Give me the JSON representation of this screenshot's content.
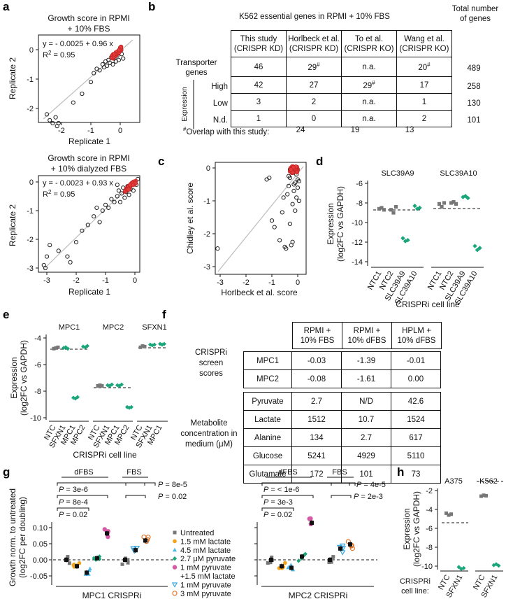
{
  "panels": [
    "a",
    "b",
    "c",
    "d",
    "e",
    "f",
    "g",
    "h"
  ],
  "a": {
    "top": {
      "title1": "Growth score in RPMI",
      "title2": "+ 10% FBS",
      "eq": "y = - 0.0025 + 0.96 x",
      "r2": "R",
      "r2sup": "2",
      "r2val": " = 0.95",
      "xlabel": "Replicate 1",
      "ylabel": "Replicate 2",
      "xticks": [
        "-2",
        "-1",
        "0"
      ],
      "yticks": [
        "0",
        "-1",
        "-2"
      ]
    },
    "bottom": {
      "title1": "Growth score in RPMI",
      "title2": "+ 10% dialyzed FBS",
      "eq": "y = - 0.0023 + 0.93 x",
      "r2": "R",
      "r2sup": "2",
      "r2val": " = 0.95",
      "xlabel": "Replicate 1",
      "ylabel": "Replicate 2",
      "xticks": [
        "-3",
        "-2",
        "-1",
        "0"
      ],
      "yticks": [
        "0",
        "-1",
        "-2",
        "-3"
      ]
    }
  },
  "b": {
    "title": "K562 essential genes in RPMI + 10% FBS",
    "total_hdr1": "Total number",
    "total_hdr2": "of genes",
    "col_hdrs": [
      [
        "This study",
        "(CRISPR KD)"
      ],
      [
        "Horlbeck et al.",
        "(CRISPR KD)"
      ],
      [
        "To et al.",
        "(CRISPR KO)"
      ],
      [
        "Wang et al.",
        "(CRISPR KO)"
      ]
    ],
    "row_transporter": [
      "Transporter",
      "genes"
    ],
    "expression_label": "Expression",
    "rows": [
      {
        "label": "",
        "cells": [
          "46",
          "29",
          "n.a.",
          "20"
        ],
        "sup": [
          "",
          "#",
          "",
          "#"
        ],
        "total": "489"
      },
      {
        "label": "High",
        "cells": [
          "42",
          "27",
          "29",
          "17"
        ],
        "sup": [
          "",
          "",
          "#",
          ""
        ],
        "total": "258"
      },
      {
        "label": "Low",
        "cells": [
          "3",
          "2",
          "n.a.",
          "1"
        ],
        "sup": [
          "",
          "",
          "",
          ""
        ],
        "total": "130"
      },
      {
        "label": "N.d.",
        "cells": [
          "1",
          "0",
          "n.a.",
          "2"
        ],
        "sup": [
          "",
          "",
          "",
          ""
        ],
        "total": "101"
      }
    ],
    "overlap_sup": "#",
    "overlap_label": "Overlap with this study:",
    "overlap": [
      "24",
      "19",
      "13"
    ]
  },
  "c": {
    "xlabel": "Horlbeck et al. score",
    "ylabel": "Chidley et al. score",
    "xticks": [
      "-3",
      "-2",
      "-1",
      "0"
    ],
    "yticks": [
      "0",
      "-1",
      "-2",
      "-3"
    ]
  },
  "d": {
    "genes": [
      "SLC39A9",
      "SLC39A10"
    ],
    "yticks": [
      "-6",
      "-8",
      "-10",
      "-12",
      "-14"
    ],
    "ylabel1": "Expression",
    "ylabel2": "(log2FC vs GAPDH)",
    "xcats": [
      "NTC1",
      "NTC2",
      "SLC39A9",
      "SLC39A10"
    ],
    "xlabel": "CRISPRi cell line",
    "chart_data": {
      "type": "scatter",
      "groups": [
        {
          "gene": "SLC39A9",
          "values": {
            "NTC1": [
              -8.6,
              -8.5,
              -8.7
            ],
            "NTC2": [
              -8.7,
              -9.0,
              -8.4
            ],
            "SLC39A9": [
              -11.6,
              -11.9,
              -11.8
            ],
            "SLC39A10": [
              -8.3,
              -8.6,
              -8.5
            ]
          }
        },
        {
          "gene": "SLC39A10",
          "values": {
            "NTC1": [
              -8.1,
              -8.4,
              -8.0
            ],
            "NTC2": [
              -8.0,
              -7.9,
              -8.1
            ],
            "SLC39A9": [
              -7.4,
              -7.3,
              -7.5
            ],
            "SLC39A10": [
              -12.4,
              -12.8,
              -12.6
            ]
          }
        }
      ]
    }
  },
  "e": {
    "genes": [
      "MPC1",
      "MPC2",
      "SFXN1"
    ],
    "yticks": [
      "-4",
      "-6",
      "-8",
      "-10"
    ],
    "ylabel1": "Expression",
    "ylabel2": "(log2FC vs GAPDH)",
    "xcats": [
      "NTC",
      "SFXN1",
      "MPC1",
      "MPC2"
    ],
    "xlabel": "CRISPRi cell line"
  },
  "f": {
    "col_hdrs": [
      [
        "RPMI +",
        "10% FBS"
      ],
      [
        "RPMI +",
        "10% dFBS"
      ],
      [
        "HPLM +",
        "10% dFBS"
      ]
    ],
    "screen_label": [
      "CRISPRi",
      "screen",
      "scores"
    ],
    "screen_rows": [
      {
        "label": "MPC1",
        "vals": [
          "-0.03",
          "-1.39",
          "-0.01"
        ]
      },
      {
        "label": "MPC2",
        "vals": [
          "-0.08",
          "-1.61",
          "0.00"
        ]
      }
    ],
    "metab_label": [
      "Metabolite",
      "concentration in",
      "medium (μM)"
    ],
    "metab_rows": [
      {
        "label": "Pyruvate",
        "vals": [
          "2.7",
          "N/D",
          "42.6"
        ]
      },
      {
        "label": "Lactate",
        "vals": [
          "1512",
          "10.7",
          "1524"
        ]
      },
      {
        "label": "Alanine",
        "vals": [
          "134",
          "2.7",
          "617"
        ]
      },
      {
        "label": "Glucose",
        "vals": [
          "5241",
          "4929",
          "5110"
        ]
      },
      {
        "label": "Glutamate",
        "vals": [
          "172",
          "101",
          "73"
        ]
      }
    ]
  },
  "g": {
    "ylabel1": "Growth norm. to untreated",
    "ylabel2": "(log2FC per doubling)",
    "yticks": [
      "0.10",
      "0.05",
      "0.00",
      "-0.05"
    ],
    "dfbs": "dFBS",
    "fbs": "FBS",
    "left": {
      "xlabel": "MPC1 CRISPRi",
      "pvals_left": [
        "3e-6",
        "8e-4",
        "0.02"
      ],
      "pvals_right": [
        "8e-5",
        "0.02"
      ]
    },
    "right": {
      "xlabel": "MPC2 CRISPRi",
      "pvals_left": [
        "< 1e-6",
        "3e-3",
        "0.02"
      ],
      "pvals_right": [
        "4e-5",
        "2e-3"
      ]
    },
    "P": "P",
    "eq": " = ",
    "legend": [
      "Untreated",
      "1.5 mM lactate",
      "4.5 mM lactate",
      "2.7 μM pyruvate",
      "1 mM pyruvate",
      "+1.5 mM lactate",
      "1 mM pyruvate",
      "3 mM pyruvate"
    ],
    "colors": {
      "untreated": "#777777",
      "lac15": "#f2a31b",
      "lac45": "#4fb7e3",
      "pyr27": "#1aa57a",
      "pyrlac": "#d65aa6",
      "pyr1": "#3aa8de",
      "pyr3": "#e4762b"
    }
  },
  "h": {
    "lines": [
      "A375",
      "K562"
    ],
    "yticks": [
      "-2",
      "-4",
      "-6",
      "-8",
      "-10"
    ],
    "ylabel1": "Expression",
    "ylabel2": "(log2FC vs GAPDH)",
    "xcats": [
      "NTC",
      "SFXN1"
    ],
    "xprefix1": "CRISPRi",
    "xprefix2": "cell line:"
  }
}
